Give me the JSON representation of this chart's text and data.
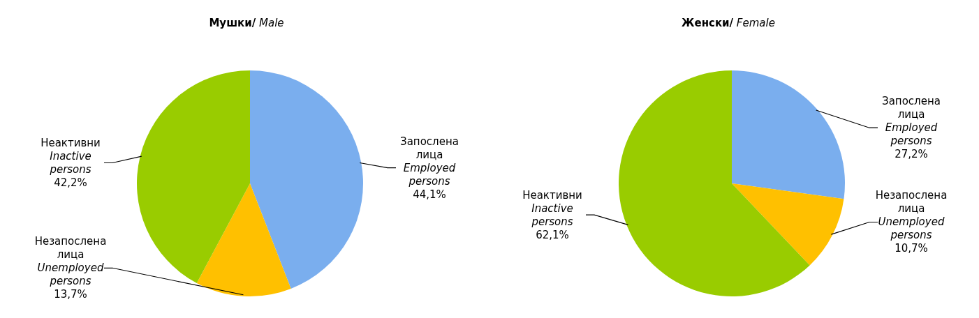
{
  "chart_data": [
    {
      "type": "pie",
      "title": "Мушки/ Male",
      "categories": [
        "Запослена лица\nEmployed persons",
        "Незапослена лица\nUnemployed persons",
        "Неактивни\nInactive persons"
      ],
      "values": [
        44.1,
        13.7,
        42.2
      ],
      "colors": [
        "#7aaeee",
        "#ffc000",
        "#99cc00"
      ],
      "value_labels": [
        "44,1%",
        "13,7%",
        "42,2%"
      ],
      "legend": false
    },
    {
      "type": "pie",
      "title": "Женски/ Female",
      "categories": [
        "Запослена лица\nEmployed persons",
        "Незапослена лица\nUnemployed persons",
        "Неактивни\nInactive persons"
      ],
      "values": [
        27.2,
        10.7,
        62.1
      ],
      "colors": [
        "#7aaeee",
        "#ffc000",
        "#99cc00"
      ],
      "value_labels": [
        "27,2%",
        "10,7%",
        "62,1%"
      ],
      "legend": false
    }
  ]
}
